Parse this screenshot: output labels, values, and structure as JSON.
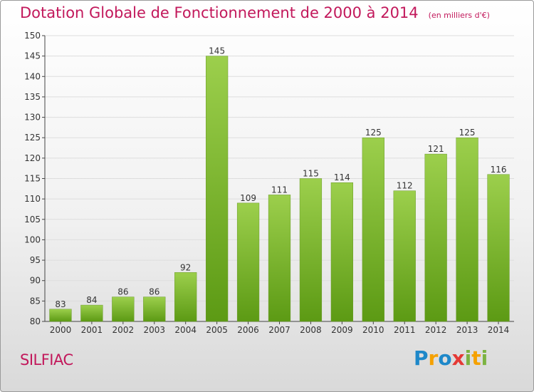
{
  "header": {
    "title": "Dotation Globale de Fonctionnement de 2000 à 2014",
    "subtitle": "(en milliers d'€)"
  },
  "footer": {
    "place": "SILFIAC",
    "logo": [
      "P",
      "r",
      "o",
      "x",
      "i",
      "t",
      "i"
    ]
  },
  "colors": {
    "bar_light": "#9ccf4c",
    "bar_dark": "#5c9a14",
    "title": "#c2185b",
    "grid": "#dddddd"
  },
  "chart_data": {
    "type": "bar",
    "title": "Dotation Globale de Fonctionnement de 2000 à 2014",
    "subtitle": "(en milliers d'€)",
    "xlabel": "",
    "ylabel": "",
    "categories": [
      "2000",
      "2001",
      "2002",
      "2003",
      "2004",
      "2005",
      "2006",
      "2007",
      "2008",
      "2009",
      "2010",
      "2011",
      "2012",
      "2013",
      "2014"
    ],
    "values": [
      83,
      84,
      86,
      86,
      92,
      145,
      109,
      111,
      115,
      114,
      125,
      112,
      121,
      125,
      116
    ],
    "ylim": [
      80,
      150
    ],
    "yticks": [
      80,
      85,
      90,
      95,
      100,
      105,
      110,
      115,
      120,
      125,
      130,
      135,
      140,
      145,
      150
    ],
    "grid": true
  }
}
